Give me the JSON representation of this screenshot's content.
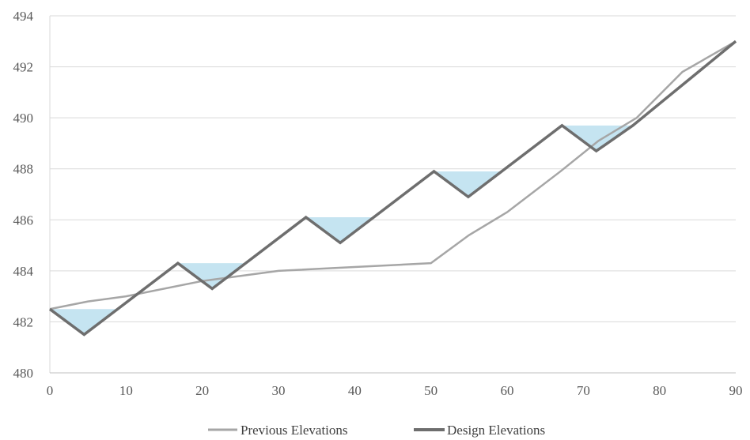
{
  "chart_data": {
    "type": "line",
    "xlim": [
      0,
      90
    ],
    "ylim": [
      480,
      494
    ],
    "x_ticks": [
      "0",
      "10",
      "20",
      "30",
      "40",
      "50",
      "60",
      "70",
      "80",
      "90"
    ],
    "y_ticks": [
      "480",
      "482",
      "484",
      "486",
      "488",
      "490",
      "492",
      "494"
    ],
    "grid": "horizontal",
    "legend_position": "bottom",
    "series": [
      {
        "name": "Previous Elevations",
        "color": "#a6a6a6",
        "points": [
          [
            0,
            482.5
          ],
          [
            5,
            482.8
          ],
          [
            10,
            483.0
          ],
          [
            20,
            483.6
          ],
          [
            30,
            484.0
          ],
          [
            40,
            484.15
          ],
          [
            50,
            484.3
          ],
          [
            55,
            485.4
          ],
          [
            60,
            486.3
          ],
          [
            67,
            487.9
          ],
          [
            72,
            489.1
          ],
          [
            77,
            490.0
          ],
          [
            83,
            491.8
          ],
          [
            90,
            493.0
          ]
        ]
      },
      {
        "name": "Design Elevations",
        "color": "#6e6e6e",
        "points": [
          [
            0,
            482.5
          ],
          [
            4.5,
            481.5
          ],
          [
            16.8,
            484.3
          ],
          [
            21.3,
            483.3
          ],
          [
            33.6,
            486.1
          ],
          [
            38.1,
            485.1
          ],
          [
            50.4,
            487.9
          ],
          [
            54.9,
            486.9
          ],
          [
            67.2,
            489.7
          ],
          [
            71.7,
            488.7
          ],
          [
            76.5,
            489.7
          ],
          [
            90,
            493.0
          ]
        ]
      }
    ],
    "triangles": {
      "color": "#c5e4f1",
      "items": [
        [
          [
            0,
            482.5
          ],
          [
            9,
            482.5
          ],
          [
            4.5,
            481.5
          ]
        ],
        [
          [
            16.8,
            484.3
          ],
          [
            25.8,
            484.3
          ],
          [
            21.3,
            483.3
          ]
        ],
        [
          [
            33.6,
            486.1
          ],
          [
            42.6,
            486.1
          ],
          [
            38.1,
            485.1
          ]
        ],
        [
          [
            50.4,
            487.9
          ],
          [
            59.4,
            487.9
          ],
          [
            54.9,
            486.9
          ]
        ],
        [
          [
            67.2,
            489.7
          ],
          [
            76.2,
            489.7
          ],
          [
            71.7,
            488.7
          ]
        ]
      ]
    }
  }
}
